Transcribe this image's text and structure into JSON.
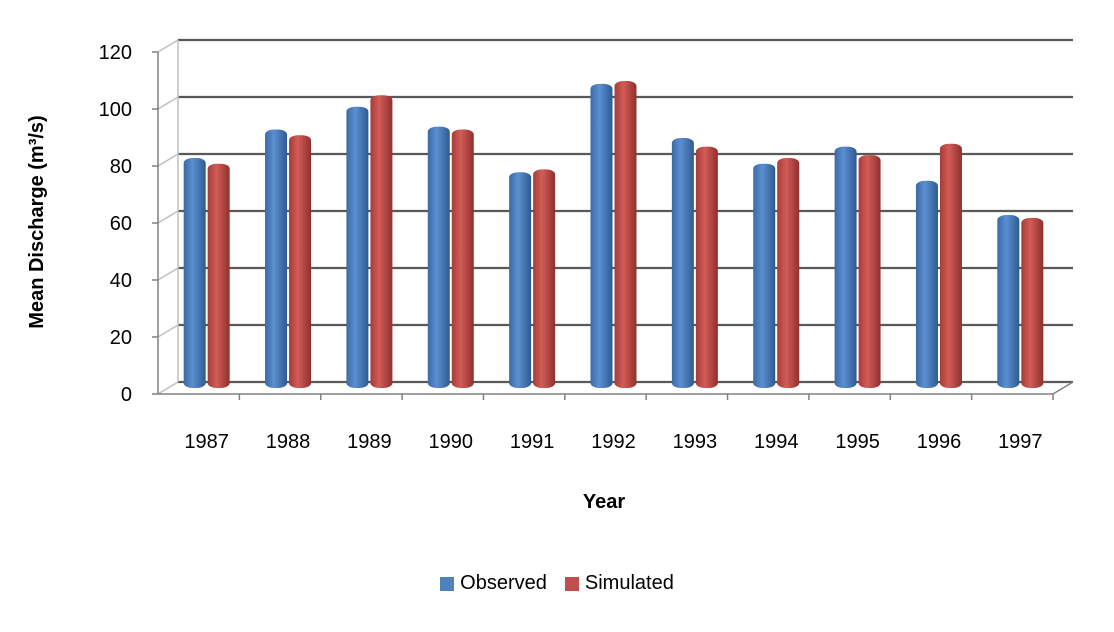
{
  "chart_data": {
    "type": "bar",
    "categories": [
      "1987",
      "1988",
      "1989",
      "1990",
      "1991",
      "1992",
      "1993",
      "1994",
      "1995",
      "1996",
      "1997"
    ],
    "series": [
      {
        "name": "Observed",
        "color": "#4f81bd",
        "values": [
          80,
          90,
          98,
          91,
          75,
          106,
          87,
          78,
          84,
          72,
          60
        ]
      },
      {
        "name": "Simulated",
        "color": "#c0504d",
        "values": [
          78,
          88,
          102,
          90,
          76,
          107,
          84,
          80,
          81,
          85,
          59
        ]
      }
    ],
    "xlabel": "Year",
    "ylabel": "Mean Discharge  (m³/s)",
    "ylim": [
      0,
      120
    ],
    "yticks": [
      "0",
      "20",
      "40",
      "60",
      "80",
      "100",
      "120"
    ],
    "grid": true,
    "legend_position": "bottom"
  }
}
